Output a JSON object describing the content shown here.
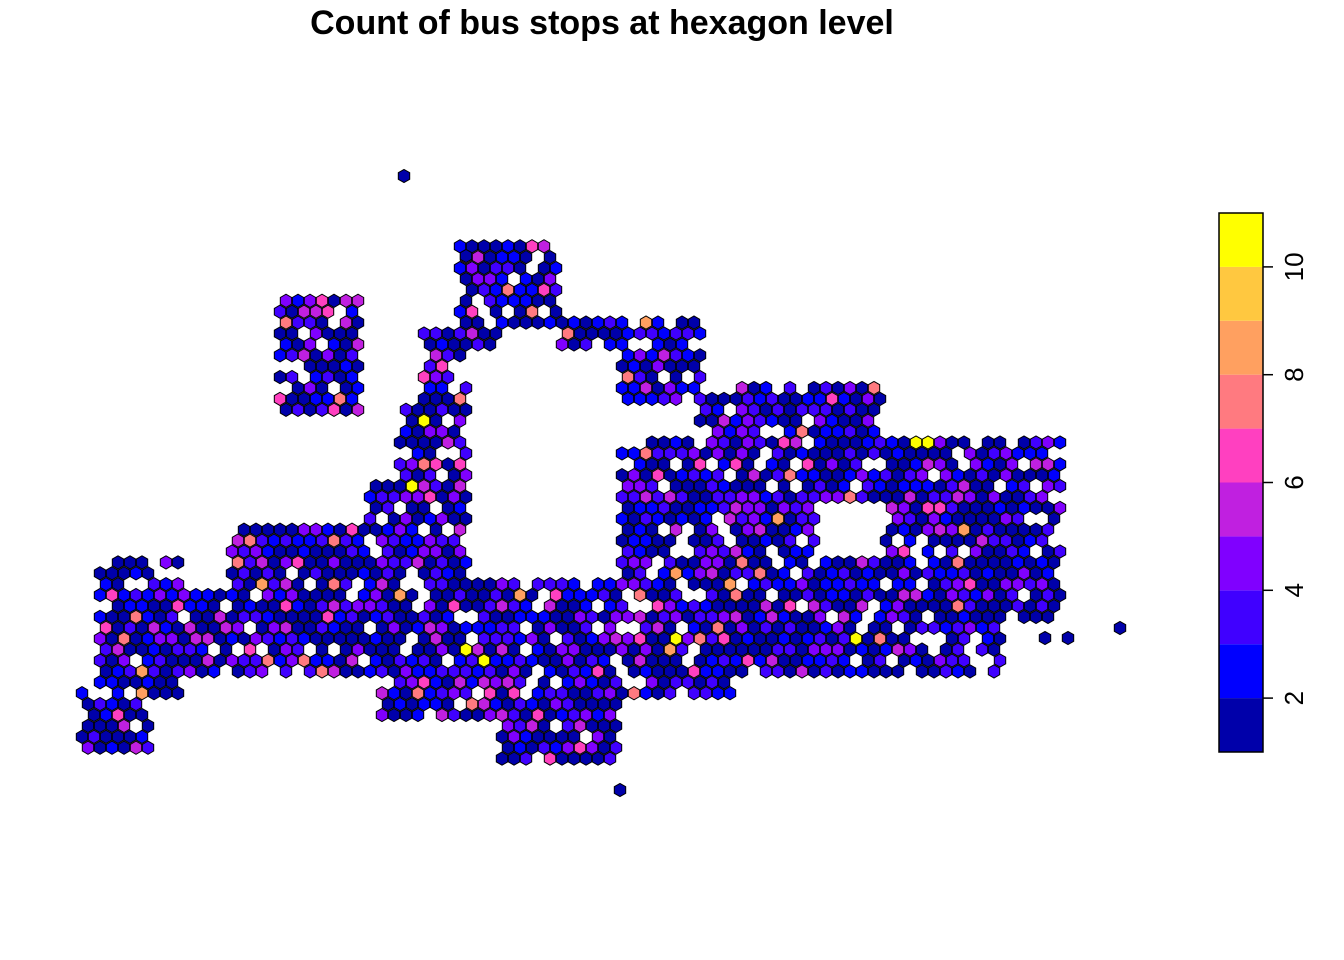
{
  "title": "Count of bus stops at hexagon level",
  "legend": {
    "ticks": [
      {
        "value": 2,
        "label": "2"
      },
      {
        "value": 4,
        "label": "4"
      },
      {
        "value": 6,
        "label": "6"
      },
      {
        "value": 8,
        "label": "8"
      },
      {
        "value": 10,
        "label": "10"
      }
    ],
    "range": [
      1,
      11
    ],
    "colors": [
      "#0000AA",
      "#0000FF",
      "#4000FF",
      "#8000FF",
      "#C020E0",
      "#FF40C0",
      "#FF7A80",
      "#FFA060",
      "#FFC840",
      "#FFFF00"
    ]
  },
  "chart_data": {
    "type": "heatmap",
    "title": "Count of bus stops at hexagon level",
    "geometry": "hexagon grid",
    "value_range": [
      1,
      11
    ],
    "color_scale": "1 (dark blue) to 11 (yellow), 10 bins",
    "highlighted_hexagons": [
      {
        "value": 10,
        "area": "north-central"
      },
      {
        "value": 10,
        "area": "east-central"
      },
      {
        "value": 10,
        "area": "east"
      },
      {
        "value": 10,
        "area": "west"
      },
      {
        "value": 9,
        "area": "south-central"
      },
      {
        "value": 8,
        "area": "north-east"
      },
      {
        "value": 8,
        "area": "central"
      }
    ]
  }
}
